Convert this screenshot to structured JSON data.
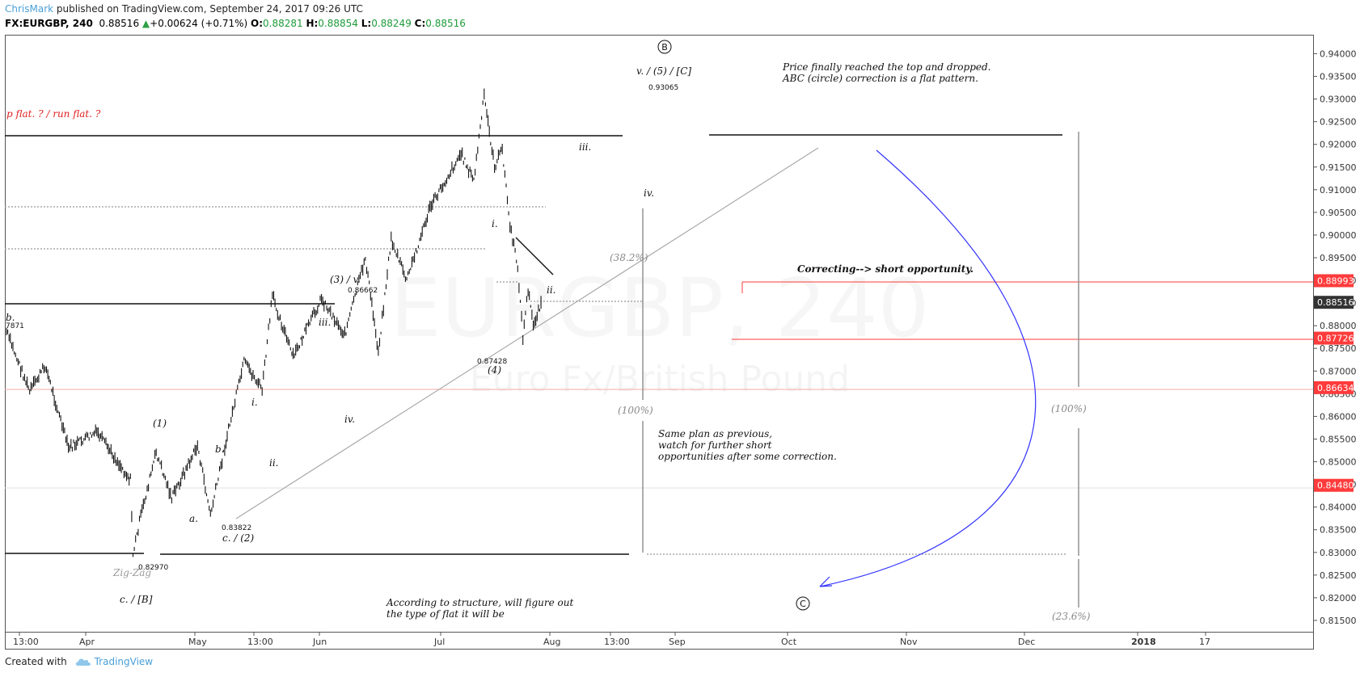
{
  "header": {
    "user": "ChrisMark",
    "published": " published on TradingView.com, September 24, 2017 09:26 UTC",
    "symbol": "FX:EURGBP, 240",
    "last": "0.88516",
    "arrow": "▲",
    "change": "+0.00624 (+0.71%)",
    "o_label": "O:",
    "o_value": "0.88281",
    "h_label": "H:",
    "h_value": "0.88854",
    "l_label": "L:",
    "l_value": "0.88249",
    "c_label": "C:",
    "c_value": "0.88516"
  },
  "footer": {
    "created_with": "Created with",
    "brand": "TradingView"
  },
  "watermark": {
    "symbol": "EURGBP, 240",
    "description": "Euro Fx/British Pound"
  },
  "colors": {
    "price_line": "#ff3b3b",
    "last_price_bg": "#333333",
    "arc": "#3333ff",
    "candle": "#111111"
  },
  "chart_data": {
    "type": "line",
    "instrument": "FX:EURGBP",
    "interval": "240",
    "ylim": [
      0.8125,
      0.944
    ],
    "y_ticks": [
      "0.94000",
      "0.93500",
      "0.93000",
      "0.92500",
      "0.92000",
      "0.91500",
      "0.91000",
      "0.90500",
      "0.90000",
      "0.89500",
      "0.89000",
      "0.88500",
      "0.88000",
      "0.87500",
      "0.87000",
      "0.86500",
      "0.86000",
      "0.85500",
      "0.85000",
      "0.84500",
      "0.84000",
      "0.83500",
      "0.83000",
      "0.82500",
      "0.82000",
      "0.81500"
    ],
    "x_ticks": [
      "13:00",
      "Apr",
      "May",
      "13:00",
      "Jun",
      "Jul",
      "Aug",
      "13:00",
      "Sep",
      "Oct",
      "Nov",
      "Dec",
      "2018",
      "17"
    ],
    "grid": false,
    "price_path": [
      {
        "t": "Mar 1",
        "price": 0.8787
      },
      {
        "t": "Mar 10",
        "price": 0.8655
      },
      {
        "t": "Mar 16",
        "price": 0.8712
      },
      {
        "t": "Mar 25",
        "price": 0.853
      },
      {
        "t": "Apr 5",
        "price": 0.8565
      },
      {
        "t": "Apr 18",
        "price": 0.846
      },
      {
        "t": "Apr 19",
        "price": 0.8297
      },
      {
        "t": "Apr 22",
        "price": 0.838
      },
      {
        "t": "Apr 28",
        "price": 0.852
      },
      {
        "t": "May 4",
        "price": 0.842
      },
      {
        "t": "May 14",
        "price": 0.8535
      },
      {
        "t": "May 19",
        "price": 0.8382
      },
      {
        "t": "May 25",
        "price": 0.8545
      },
      {
        "t": "Jun 1",
        "price": 0.872
      },
      {
        "t": "Jun 8",
        "price": 0.866
      },
      {
        "t": "Jun 12",
        "price": 0.8866
      },
      {
        "t": "Jun 20",
        "price": 0.873
      },
      {
        "t": "Jul 1",
        "price": 0.886
      },
      {
        "t": "Jul 10",
        "price": 0.878
      },
      {
        "t": "Jul 18",
        "price": 0.895
      },
      {
        "t": "Jul 23",
        "price": 0.8743
      },
      {
        "t": "Jul 28",
        "price": 0.899
      },
      {
        "t": "Aug 3",
        "price": 0.89
      },
      {
        "t": "Aug 12",
        "price": 0.906
      },
      {
        "t": "Aug 24",
        "price": 0.918
      },
      {
        "t": "Aug 29",
        "price": 0.912
      },
      {
        "t": "Sep 2",
        "price": 0.9307
      },
      {
        "t": "Sep 6",
        "price": 0.915
      },
      {
        "t": "Sep 9",
        "price": 0.919
      },
      {
        "t": "Sep 12",
        "price": 0.902
      },
      {
        "t": "Sep 15",
        "price": 0.893
      },
      {
        "t": "Sep 17",
        "price": 0.8775
      },
      {
        "t": "Sep 19",
        "price": 0.888
      },
      {
        "t": "Sep 21",
        "price": 0.88
      },
      {
        "t": "Sep 24",
        "price": 0.88516
      }
    ],
    "price_labels": [
      {
        "price": 0.88993,
        "text": "0.88993"
      },
      {
        "price": 0.88516,
        "text": "0.88516"
      },
      {
        "price": 0.87726,
        "text": "0.87726"
      },
      {
        "price": 0.86634,
        "text": "0.86634"
      },
      {
        "price": 0.8448,
        "text": "0.84480"
      }
    ],
    "annotations": {
      "wave_B_circle": "B",
      "wave_C_circle": "C",
      "top": "v. / (5) / [C]",
      "top_price": "0.93065",
      "note_top": "Price finally reached the top and dropped.",
      "note_top2": "ABC (circle) correction is a flat pattern.",
      "flat": "p flat. ? / run flat. ?",
      "iii_upper": "iii.",
      "iv_upper": "iv.",
      "i_upper": "i.",
      "ii_upper": "ii.",
      "fib382": "(38.2%)",
      "wave3": "(3) / v.",
      "wave3_price": "0.86662",
      "iii_mid": "iii.",
      "wave4_price": "0.87428",
      "wave4": "(4)",
      "b_left": "b.",
      "b_left_price": "7871",
      "short_opp": "Correcting--> short opportunity.",
      "fib100_mid": "(100%)",
      "fib100_right": "(100%)",
      "wave1": "(1)",
      "i_low": "i.",
      "iv_low": "iv.",
      "b_low": "b.",
      "ii_low": "ii.",
      "plan1": "Same plan as previous,",
      "plan2": "watch for further short",
      "plan3": "opportunities after some correction.",
      "a_low": "a.",
      "low2_price": "0.83822",
      "wave2": "c. / (2)",
      "low1_price": "0.82970",
      "zigzag": "Zig-Zag",
      "waveB": "c. / [B]",
      "structure1": "According to structure, will figure out",
      "structure2": "the type of flat it will be",
      "fib236": "(23.6%)"
    }
  }
}
